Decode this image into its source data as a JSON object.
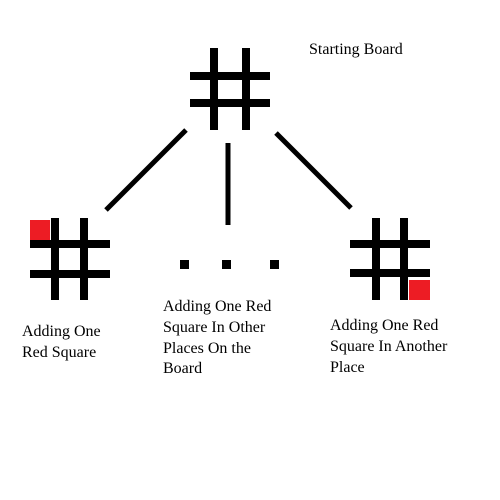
{
  "labels": {
    "starting_board": "Starting Board",
    "left_branch": "Adding One\nRed Square",
    "middle_branch": "Adding One Red\nSquare In Other\nPlaces On the\nBoard",
    "right_branch": "Adding One Red\nSquare In Another\nPlace"
  },
  "colors": {
    "grid": "#000000",
    "red_square": "#ed1c24",
    "background": "#ffffff"
  },
  "boards": {
    "starting": {
      "red_cell": null
    },
    "left": {
      "red_cell": "top-left"
    },
    "right": {
      "red_cell": "bottom-right"
    }
  }
}
